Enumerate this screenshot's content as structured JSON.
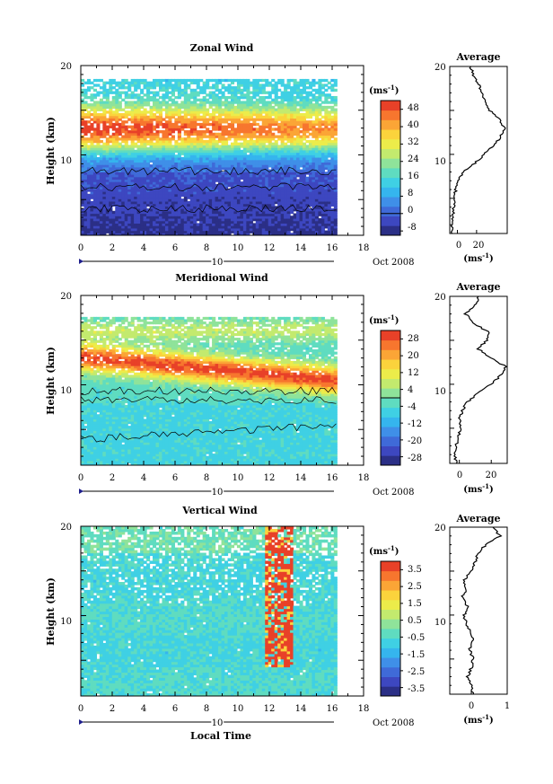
{
  "palette": {
    "wind_colors": [
      "#2b2f86",
      "#3d47c0",
      "#3f6ad8",
      "#3f8fe8",
      "#35b5ee",
      "#3fd0e4",
      "#5fdcc0",
      "#8fe39a",
      "#c3ea6e",
      "#ecec4a",
      "#fbd33c",
      "#fba536",
      "#f7762e",
      "#e84128"
    ],
    "axis_color": "#000000",
    "marker_color": "#1e1e8c"
  },
  "chart_data": [
    {
      "type": "heatmap",
      "title": "Zonal Wind",
      "ylabel": "Height (km)",
      "x_ticks": [
        "0",
        "2",
        "4",
        "6",
        "8",
        "10",
        "12",
        "14",
        "16",
        "18"
      ],
      "y_ticks": [
        "10",
        "20"
      ],
      "xlim": [
        0,
        18
      ],
      "ylim": [
        1,
        20
      ],
      "colorbar_unit": "(ms",
      "unit_exponent": "-1",
      "colorbar_ticks": [
        "48",
        "40",
        "32",
        "24",
        "16",
        "8",
        "0",
        "-8"
      ],
      "colorbar_range": [
        -10,
        52
      ],
      "contour_level": 0,
      "date_axis": {
        "tick": "10",
        "label": "Oct 2008"
      },
      "profile": {
        "title": "Average",
        "x_ticks": [
          "0",
          "20"
        ],
        "xlim": [
          -8,
          52
        ],
        "unit": "(ms",
        "unit_exponent": "-1",
        "heights": [
          1,
          2,
          3,
          4,
          5,
          6,
          7,
          8,
          9,
          10,
          11,
          12,
          13,
          14,
          15,
          16,
          17,
          18,
          19,
          20
        ],
        "values": [
          -6,
          -6,
          -5,
          -4,
          -3,
          -2,
          1,
          6,
          18,
          28,
          38,
          45,
          49,
          44,
          34,
          30,
          25,
          22,
          16,
          14
        ]
      }
    },
    {
      "type": "heatmap",
      "title": "Meridional Wind",
      "ylabel": "Height (km)",
      "x_ticks": [
        "0",
        "2",
        "4",
        "6",
        "8",
        "10",
        "12",
        "14",
        "16",
        "18"
      ],
      "y_ticks": [
        "10",
        "20"
      ],
      "xlim": [
        0,
        18
      ],
      "ylim": [
        1,
        20
      ],
      "colorbar_unit": "(ms",
      "unit_exponent": "-1",
      "colorbar_ticks": [
        "28",
        "20",
        "12",
        "4",
        "-4",
        "-12",
        "-20",
        "-28"
      ],
      "colorbar_range": [
        -32,
        32
      ],
      "contour_level": 0,
      "date_axis": {
        "tick": "10",
        "label": "Oct 2008"
      },
      "profile": {
        "title": "Average",
        "x_ticks": [
          "0",
          "20"
        ],
        "xlim": [
          -6,
          30
        ],
        "unit": "(ms",
        "unit_exponent": "-1",
        "heights": [
          1,
          2,
          3,
          4,
          5,
          6,
          7,
          8,
          9,
          10,
          11,
          12,
          13,
          14,
          15,
          16,
          17,
          18,
          19,
          20
        ],
        "values": [
          -2,
          -3,
          -2,
          -1,
          1,
          0,
          2,
          5,
          12,
          20,
          26,
          29,
          20,
          12,
          17,
          18,
          8,
          4,
          10,
          12
        ]
      }
    },
    {
      "type": "heatmap",
      "title": "Vertical Wind",
      "ylabel": "Height (km)",
      "xlabel": "Local Time",
      "x_ticks": [
        "0",
        "2",
        "4",
        "6",
        "8",
        "10",
        "12",
        "14",
        "16",
        "18"
      ],
      "y_ticks": [
        "10",
        "20"
      ],
      "xlim": [
        0,
        18
      ],
      "ylim": [
        1,
        20
      ],
      "colorbar_unit": "(ms",
      "unit_exponent": "-1",
      "colorbar_ticks": [
        "3.5",
        "2.5",
        "1.5",
        "0.5",
        "-0.5",
        "-1.5",
        "-2.5",
        "-3.5"
      ],
      "colorbar_range": [
        -4,
        4
      ],
      "date_axis": {
        "tick": "10",
        "label": "Oct 2008"
      },
      "profile": {
        "title": "Average",
        "x_ticks": [
          "0",
          "1"
        ],
        "xlim": [
          -0.6,
          1
        ],
        "unit": "(ms",
        "unit_exponent": "-1",
        "heights": [
          1,
          2,
          3,
          4,
          5,
          6,
          7,
          8,
          9,
          10,
          11,
          12,
          13,
          14,
          15,
          16,
          17,
          18,
          19,
          20
        ],
        "values": [
          0.05,
          0.0,
          -0.1,
          0.0,
          0.05,
          -0.05,
          0.05,
          0.0,
          -0.15,
          -0.2,
          -0.1,
          -0.25,
          -0.15,
          -0.2,
          0.0,
          0.1,
          0.2,
          0.4,
          0.8,
          0.6
        ]
      }
    }
  ]
}
